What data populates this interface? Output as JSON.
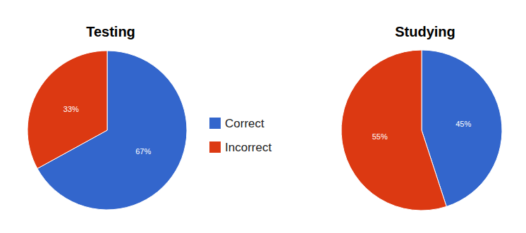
{
  "chart_data": [
    {
      "type": "pie",
      "title": "Testing",
      "categories": [
        "Correct",
        "Incorrect"
      ],
      "values": [
        67,
        33
      ],
      "value_labels": [
        "67%",
        "33%"
      ],
      "colors": [
        "#3366cc",
        "#dc3912"
      ],
      "data_labels": true,
      "legend": "center"
    },
    {
      "type": "pie",
      "title": "Studying",
      "categories": [
        "Correct",
        "Incorrect"
      ],
      "values": [
        45,
        55
      ],
      "value_labels": [
        "45%",
        "55%"
      ],
      "colors": [
        "#3366cc",
        "#dc3912"
      ],
      "data_labels": true
    }
  ]
}
